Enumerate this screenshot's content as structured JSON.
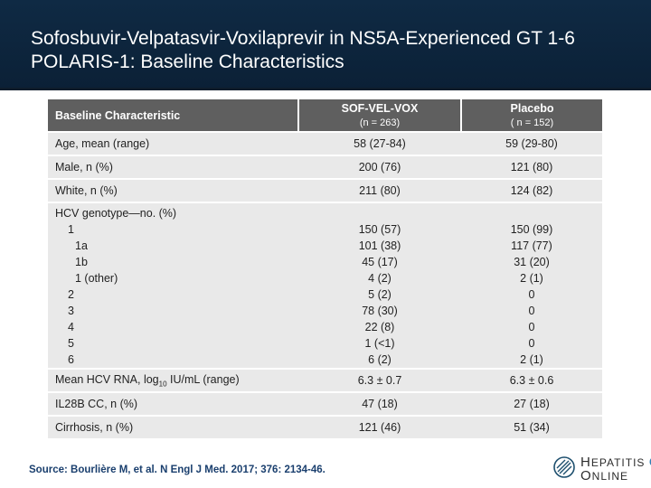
{
  "slide": {
    "title_line1": "Sofosbuvir-Velpatasvir-Voxilaprevir in NS5A-Experienced GT 1-6",
    "title_line2": "POLARIS-1: Baseline Characteristics"
  },
  "table": {
    "header": {
      "col1": "Baseline Characteristic",
      "col2_main": "SOF-VEL-VOX",
      "col2_sub": "(n = 263)",
      "col3_main": "Placebo",
      "col3_sub": "( n = 152)"
    },
    "rows": [
      {
        "label": "Age, mean (range)",
        "vel": "58 (27-84)",
        "placebo": "59 (29-80)"
      },
      {
        "label": "Male, n (%)",
        "vel": "200 (76)",
        "placebo": "121 (80)"
      },
      {
        "label": "White, n (%)",
        "vel": "211 (80)",
        "placebo": "124 (82)"
      }
    ],
    "genotype": {
      "label": "HCV genotype—no. (%)",
      "items": [
        {
          "label": "1",
          "vel": "150 (57)",
          "placebo": "150 (99)"
        },
        {
          "label": "1a",
          "vel": "101 (38)",
          "placebo": "117 (77)"
        },
        {
          "label": "1b",
          "vel": "45 (17)",
          "placebo": "31 (20)"
        },
        {
          "label": "1 (other)",
          "vel": "4 (2)",
          "placebo": "2 (1)"
        },
        {
          "label": "2",
          "vel": "5 (2)",
          "placebo": "0"
        },
        {
          "label": "3",
          "vel": "78 (30)",
          "placebo": "0"
        },
        {
          "label": "4",
          "vel": "22 (8)",
          "placebo": "0"
        },
        {
          "label": "5",
          "vel": "1 (<1)",
          "placebo": "0"
        },
        {
          "label": "6",
          "vel": "6 (2)",
          "placebo": "2 (1)"
        }
      ]
    },
    "rna": {
      "label_pre": "Mean HCV RNA, log",
      "label_sub": "10",
      "label_post": " IU/mL (range)",
      "vel": "6.3 ± 0.7",
      "placebo": "6.3 ± 0.6"
    },
    "rows_after": [
      {
        "label": "IL28B CC, n (%)",
        "vel": "47 (18)",
        "placebo": "27 (18)"
      },
      {
        "label": "Cirrhosis, n (%)",
        "vel": "121 (46)",
        "placebo": "51 (34)"
      }
    ]
  },
  "source": "Source: Bourlière M, et al. N Engl J Med. 2017; 376: 2134-46.",
  "logo": {
    "line1_initial": "H",
    "line1_rest": "EPATITIS",
    "line1_c": "C",
    "line2_initial": "O",
    "line2_rest": "NLINE"
  },
  "colors": {
    "header_bg": "#0f2a44",
    "table_header": "#5f5f5f",
    "row_bg": "#e9e9e9",
    "source_text": "#1a3f6e"
  }
}
